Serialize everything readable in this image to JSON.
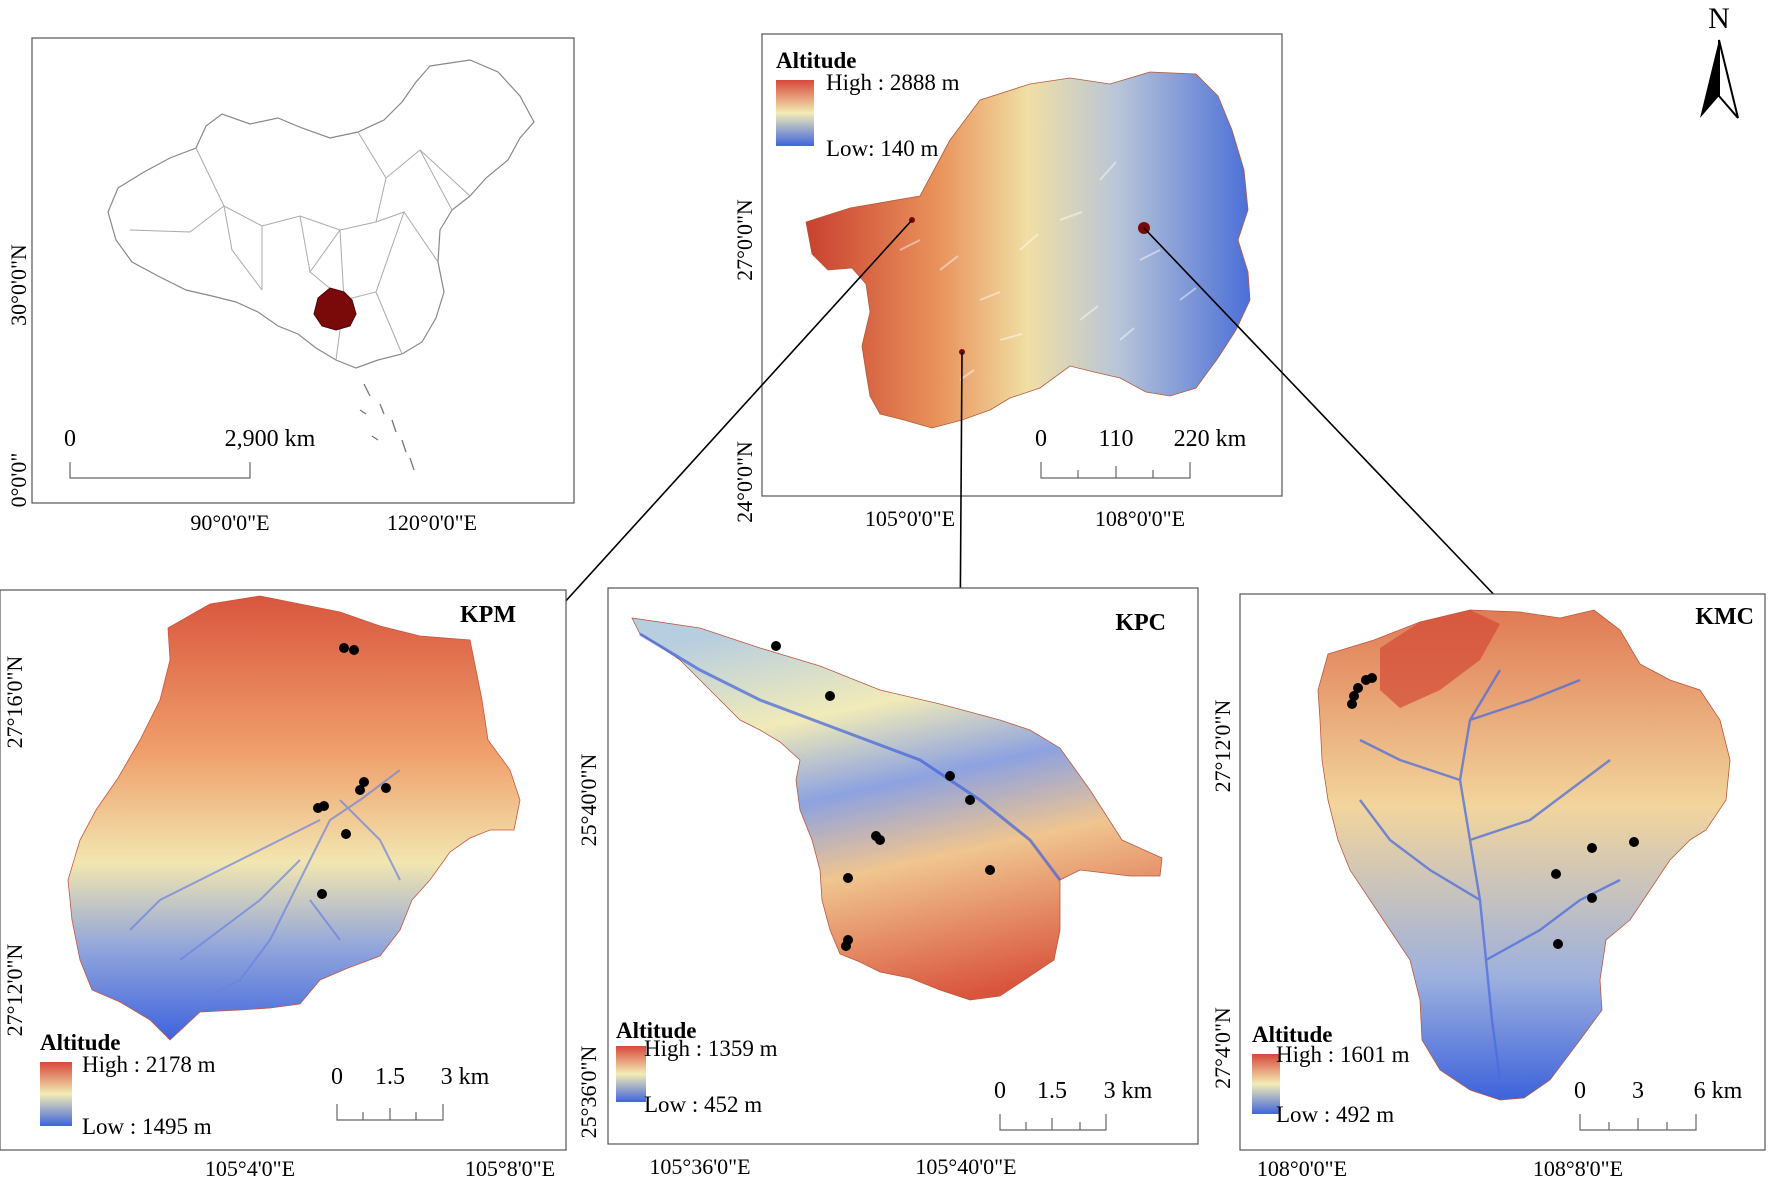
{
  "north_arrow": {
    "label": "N"
  },
  "panels": {
    "china": {
      "scale": {
        "zero": "0",
        "end": "2,900 km"
      },
      "x_ticks": [
        "90°0'0\"E",
        "120°0'0\"E"
      ],
      "y_ticks": [
        "30°0'0\"N",
        "0°0'0\""
      ]
    },
    "guizhou": {
      "legend": {
        "title": "Altitude",
        "high": "High : 2888 m",
        "low": "Low: 140 m"
      },
      "scale": {
        "labels": [
          "0",
          "110",
          "220 km"
        ]
      },
      "x_ticks": [
        "105°0'0\"E",
        "108°0'0\"E"
      ],
      "y_ticks": [
        "27°0'0\"N",
        "24°0'0\"N"
      ]
    },
    "kpm": {
      "name": "KPM",
      "legend": {
        "title": "Altitude",
        "high": "High : 2178 m",
        "low": "Low : 1495 m"
      },
      "scale": {
        "labels": [
          "0",
          "1.5",
          "3 km"
        ]
      },
      "x_ticks": [
        "105°4'0\"E",
        "105°8'0\"E"
      ],
      "y_ticks": [
        "27°16'0\"N",
        "27°12'0\"N"
      ]
    },
    "kpc": {
      "name": "KPC",
      "legend": {
        "title": "Altitude",
        "high": "High : 1359 m",
        "low": "Low : 452 m"
      },
      "scale": {
        "labels": [
          "0",
          "1.5",
          "3 km"
        ]
      },
      "x_ticks": [
        "105°36'0\"E",
        "105°40'0\"E"
      ],
      "y_ticks": [
        "25°40'0\"N",
        "25°36'0\"N"
      ]
    },
    "kmc": {
      "name": "KMC",
      "legend": {
        "title": "Altitude",
        "high": "High : 1601 m",
        "low": "Low : 492 m"
      },
      "scale": {
        "labels": [
          "0",
          "3",
          "6 km"
        ]
      },
      "x_ticks": [
        "108°0'0\"E",
        "108°8'0\"E"
      ],
      "y_ticks": [
        "27°12'0\"N",
        "27°4'0\"N"
      ]
    }
  },
  "colors": {
    "high": "#d7473a",
    "mid": "#f3edb5",
    "low": "#3f64dc",
    "highlight": "#7a0a0a",
    "sample_point": "#000000"
  }
}
